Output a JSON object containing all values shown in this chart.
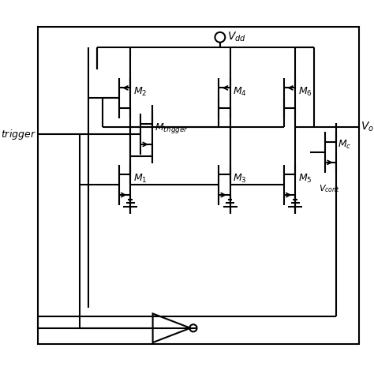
{
  "background_color": "#ffffff",
  "line_color": "#000000",
  "line_width": 1.5,
  "vdd_label": "$V_{dd}$",
  "vout_label": "$V_o$",
  "vcont_label": "$V_{cont}$",
  "trigger_label": "$trigger$",
  "m1_label": "$M_1$",
  "m2_label": "$M_2$",
  "m3_label": "$M_3$",
  "m4_label": "$M_4$",
  "m5_label": "$M_5$",
  "m6_label": "$M_6$",
  "mtrig_label": "$M_{trigger}$",
  "mc_label": "$M_c$",
  "fig_width": 4.74,
  "fig_height": 4.74,
  "dpi": 100
}
